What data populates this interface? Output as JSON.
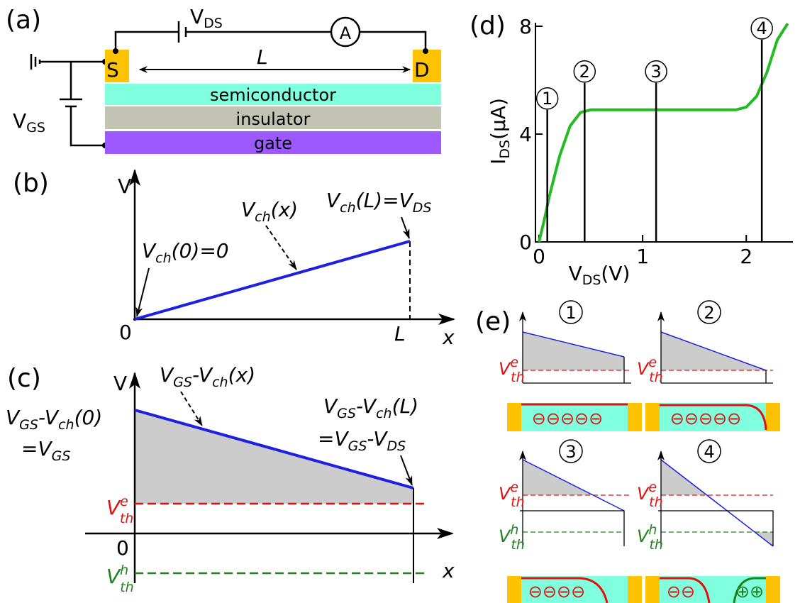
{
  "panel_labels": [
    "(a)",
    "(b)",
    "(c)",
    "(d)",
    "(e)"
  ],
  "circuit": {
    "vds": [
      "V",
      "DS"
    ],
    "vgs": [
      "V",
      "GS"
    ],
    "ammeter": "A",
    "source": "S",
    "drain": "D",
    "length": "L",
    "layers": [
      "semiconductor",
      "insulator",
      "gate"
    ]
  },
  "panel_b": {
    "axis_y": "V",
    "origin": "0",
    "axis_x": "x",
    "length": "L",
    "vch_x": [
      "V",
      "ch",
      "(x)"
    ],
    "vch_l": [
      "V",
      "ch",
      "(L)=V",
      "DS"
    ],
    "vch_0": [
      "V",
      "ch",
      "(0)=0"
    ]
  },
  "panel_c": {
    "axis_y": "V",
    "origin": "0",
    "axis_x": "x",
    "diff_x": [
      "V",
      "GS",
      "-V",
      "ch",
      "(x)"
    ],
    "diff_0": [
      "V",
      "GS",
      "-V",
      "ch",
      "(0)"
    ],
    "eq_0": [
      "=V",
      "GS"
    ],
    "diff_l": [
      "V",
      "GS",
      "-V",
      "ch",
      "(L)"
    ],
    "eq_l": [
      "=V",
      "GS",
      "-V",
      "DS"
    ],
    "vth_e": [
      "V",
      "e",
      "th"
    ],
    "vth_h": [
      "V",
      "h",
      "th"
    ]
  },
  "chart_data": {
    "type": "line",
    "x_label": [
      "V",
      "DS",
      "(V)"
    ],
    "y_label": [
      "I",
      "DS",
      "(μA)"
    ],
    "x": [
      0,
      0.05,
      0.1,
      0.2,
      0.3,
      0.4,
      0.5,
      1,
      1.5,
      1.9,
      2,
      2.1,
      2.2,
      2.3,
      2.4
    ],
    "series": [
      {
        "color": "#22bb22",
        "values": [
          0,
          0.8,
          1.7,
          3.2,
          4.3,
          4.8,
          4.9,
          4.9,
          4.9,
          4.9,
          5,
          5.4,
          6.3,
          7.5,
          8.1
        ]
      }
    ],
    "xlim": [
      0,
      2.45
    ],
    "ylim": [
      0,
      8
    ],
    "xticks": [
      0,
      1,
      2
    ],
    "yticks": [
      0,
      4,
      8
    ],
    "markers": [
      {
        "label": "1",
        "x": 0.08,
        "top": 4.9
      },
      {
        "label": "2",
        "x": 0.44,
        "top": 5.9
      },
      {
        "label": "3",
        "x": 1.13,
        "top": 5.9
      },
      {
        "label": "4",
        "x": 2.15,
        "top": 7.5
      }
    ]
  },
  "panel_e": {
    "plots": [
      {
        "number": "1",
        "vth_e": [
          "V",
          "e",
          "th"
        ],
        "charges": [
          "⊖⊖⊖⊖⊖"
        ]
      },
      {
        "number": "2",
        "vth_e": [
          "V",
          "e",
          "th"
        ],
        "charges": [
          "⊖⊖⊖⊖⊖"
        ]
      },
      {
        "number": "3",
        "vth_e": [
          "V",
          "e",
          "th"
        ],
        "vth_h": [
          "V",
          "h",
          "th"
        ],
        "charges": [
          "⊖⊖⊖⊖"
        ]
      },
      {
        "number": "4",
        "vth_e": [
          "V",
          "e",
          "th"
        ],
        "vth_h": [
          "V",
          "h",
          "th"
        ],
        "charges": [
          "⊖⊖",
          "⊕⊕"
        ]
      }
    ]
  }
}
